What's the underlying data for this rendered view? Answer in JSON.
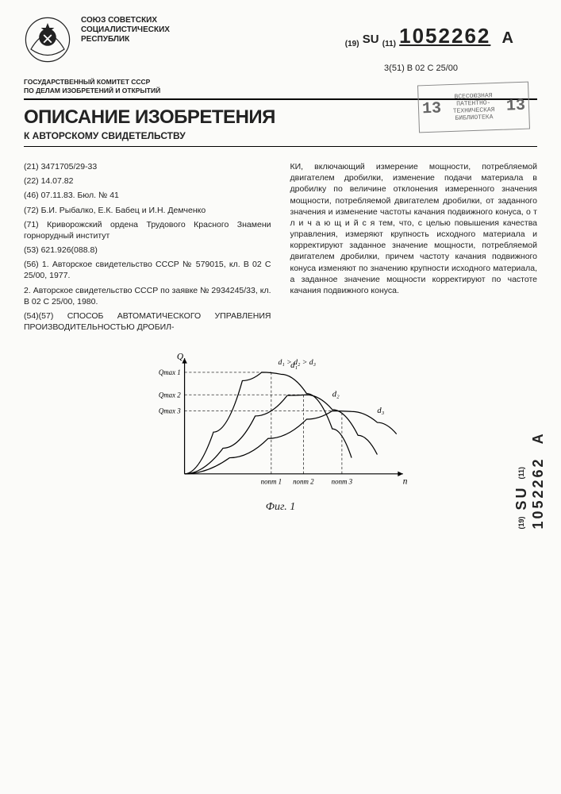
{
  "header": {
    "org_line1": "СОЮЗ СОВЕТСКИХ",
    "org_line2": "СОЦИАЛИСТИЧЕСКИХ",
    "org_line3": "РЕСПУБЛИК"
  },
  "doc_id": {
    "prefix_su": "SU",
    "prefix_code": "(19)",
    "sub_code": "(11)",
    "number": "1052262",
    "suffix": "A"
  },
  "class_code": "3(51) B 02 C 25/00",
  "stamp": {
    "line1": "ВСЕСОЮЗНАЯ",
    "line2": "ПАТЕНТНО-",
    "line3": "ТЕХНИЧЕСКАЯ",
    "line4": "БИБЛИОТЕКА",
    "left_num": "13",
    "right_num": "13"
  },
  "committee": {
    "line1": "ГОСУДАРСТВЕННЫЙ КОМИТЕТ СССР",
    "line2": "ПО ДЕЛАМ ИЗОБРЕТЕНИЙ И ОТКРЫТИЙ"
  },
  "title": "ОПИСАНИЕ ИЗОБРЕТЕНИЯ",
  "subtitle": "К АВТОРСКОМУ СВИДЕТЕЛЬСТВУ",
  "left_col": {
    "p21": "(21) 3471705/29-33",
    "p22": "(22) 14.07.82",
    "p46": "(46) 07.11.83. Бюл. № 41",
    "p72": "(72) Б.И. Рыбалко, Е.К. Бабец и И.Н. Демченко",
    "p71": "(71) Криворожский ордена Трудового Красного Знамени горнорудный институт",
    "p53": "(53) 621.926(088.8)",
    "p56": "(56) 1. Авторское свидетельство СССР № 579015, кл. B 02 C 25/00, 1977.",
    "p56b": "2. Авторское свидетельство СССР по заявке № 2934245/33, кл. B 02 C 25/00, 1980.",
    "p54": "(54)(57) СПОСОБ АВТОМАТИЧЕСКОГО УПРАВЛЕНИЯ ПРОИЗВОДИТЕЛЬНОСТЬЮ ДРОБИЛ-"
  },
  "right_col": {
    "body": "КИ, включающий измерение мощности, потребляемой двигателем дробилки, изменение подачи материала в дробилку по величине отклонения измеренного значения мощности, потребляемой двигателем дробилки, от заданного значения и изменение частоты качания подвижного конуса, о т л и ч а ю щ и й с я  тем, что, с целью повышения качества управления, измеряют крупность исходного материала и корректируют заданное значение мощности, потребляемой двигателем дробилки, причем частоту качания подвижного конуса изменяют по значению крупности исходного материала, а заданное значение мощности корректируют по частоте качания подвижного конуса."
  },
  "chart": {
    "type": "line",
    "x_axis_label": "n",
    "y_axis_label": "Q",
    "annotation": "d₁ > d₂ > d₃",
    "series": [
      {
        "name": "d₁",
        "color": "#000000",
        "points": [
          [
            0,
            0
          ],
          [
            45,
            65
          ],
          [
            90,
            145
          ],
          [
            120,
            158
          ],
          [
            150,
            155
          ],
          [
            190,
            125
          ],
          [
            230,
            70
          ],
          [
            260,
            25
          ]
        ]
      },
      {
        "name": "d₂",
        "color": "#000000",
        "points": [
          [
            0,
            0
          ],
          [
            60,
            40
          ],
          [
            110,
            90
          ],
          [
            160,
            122
          ],
          [
            190,
            123
          ],
          [
            230,
            100
          ],
          [
            270,
            60
          ],
          [
            300,
            30
          ]
        ]
      },
      {
        "name": "d₃",
        "color": "#000000",
        "points": [
          [
            0,
            0
          ],
          [
            70,
            25
          ],
          [
            130,
            55
          ],
          [
            190,
            85
          ],
          [
            230,
            98
          ],
          [
            260,
            97
          ],
          [
            300,
            80
          ],
          [
            330,
            62
          ]
        ]
      }
    ],
    "y_ticks": [
      {
        "label": "Qmax 1",
        "y": 158
      },
      {
        "label": "Qmax 2",
        "y": 123
      },
      {
        "label": "Qmax 3",
        "y": 98
      }
    ],
    "x_ticks": [
      {
        "label": "nопт 1",
        "x": 135
      },
      {
        "label": "nопт 2",
        "x": 185
      },
      {
        "label": "nопт 3",
        "x": 245
      }
    ],
    "figure_label": "Фиг. 1"
  },
  "side_id": {
    "prefix": "SU",
    "sub": "(11)",
    "number": "1052262",
    "suffix": "A",
    "code19": "(19)"
  }
}
